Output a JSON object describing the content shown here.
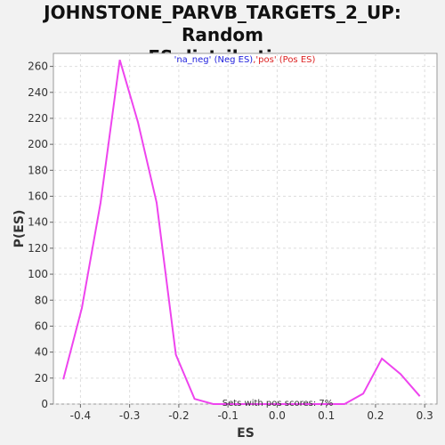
{
  "chart_data": {
    "type": "line",
    "title_line1": "JOHNSTONE_PARVB_TARGETS_2_UP: Random",
    "title_line2": "ES distribution",
    "xlabel": "ES",
    "ylabel": "P(ES)",
    "xlim": [
      -0.455,
      0.325
    ],
    "ylim": [
      0,
      270
    ],
    "x_ticks": [
      -0.4,
      -0.3,
      -0.2,
      -0.1,
      0.0,
      0.1,
      0.2,
      0.3
    ],
    "x_tick_labels": [
      "-0.4",
      "-0.3",
      "-0.2",
      "-0.1",
      "0.0",
      "0.1",
      "0.2",
      "0.3"
    ],
    "y_ticks": [
      0,
      20,
      40,
      60,
      80,
      100,
      120,
      140,
      160,
      180,
      200,
      220,
      240,
      260
    ],
    "y_tick_labels": [
      "0",
      "20",
      "40",
      "60",
      "80",
      "100",
      "120",
      "140",
      "160",
      "180",
      "200",
      "220",
      "240",
      "260"
    ],
    "grid": true,
    "legend": {
      "position": "top-center",
      "entries": [
        {
          "text": "'na_neg' (Neg ES)",
          "color": "#2222dd"
        },
        {
          "text": ",",
          "color": "#dd2222"
        },
        {
          "text": "'pos' (Pos ES)",
          "color": "#dd2222"
        }
      ]
    },
    "annotation": "Sets with pos scores: 7%",
    "series": [
      {
        "color": "#ee44ee",
        "x": [
          -0.435,
          -0.397,
          -0.359,
          -0.32,
          -0.283,
          -0.245,
          -0.206,
          -0.168,
          -0.13,
          -0.092,
          -0.054,
          -0.016,
          0.022,
          0.06,
          0.098,
          0.137,
          0.175,
          0.213,
          0.251,
          0.29
        ],
        "y": [
          19,
          74,
          155,
          265,
          217,
          155,
          38,
          4,
          0,
          0,
          0,
          0,
          0,
          0,
          0,
          0,
          8,
          35,
          23,
          6
        ]
      }
    ]
  }
}
